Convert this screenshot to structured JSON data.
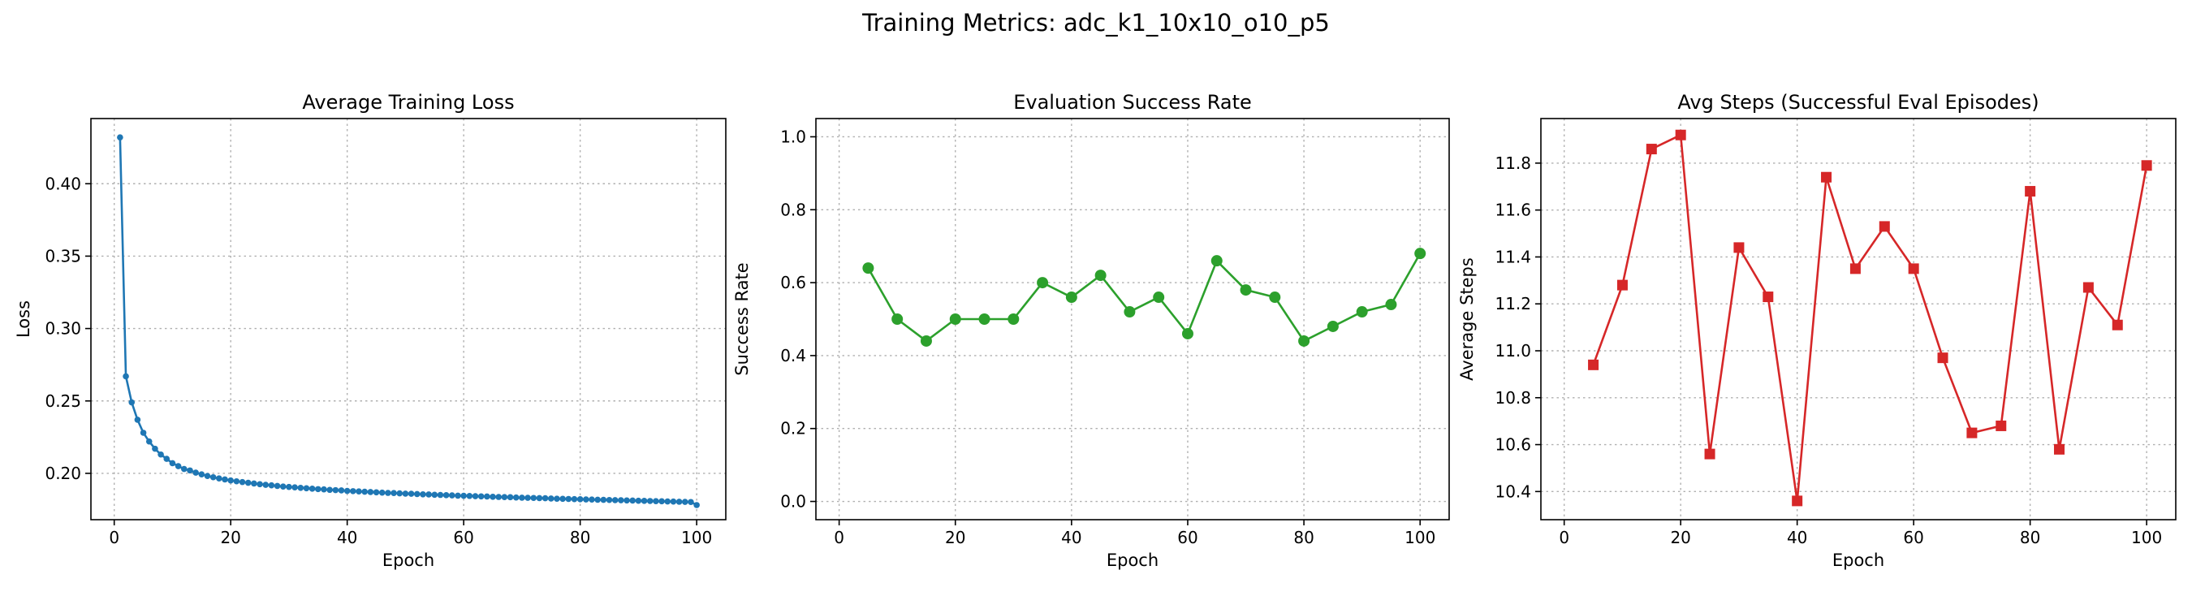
{
  "suptitle": "Training Metrics: adc_k1_10x10_o10_p5",
  "chart_data": [
    {
      "type": "line",
      "title": "Average Training Loss",
      "xlabel": "Epoch",
      "ylabel": "Loss",
      "xlim": [
        -4,
        105
      ],
      "ylim": [
        0.168,
        0.445
      ],
      "xticks": [
        0,
        20,
        40,
        60,
        80,
        100
      ],
      "yticks": [
        0.2,
        0.25,
        0.3,
        0.35,
        0.4
      ],
      "ytick_labels": [
        "0.20",
        "0.25",
        "0.30",
        "0.35",
        "0.40"
      ],
      "grid": true,
      "legend": "none",
      "color": "#1f77b4",
      "marker": "circle-small",
      "series": [
        {
          "x": [
            1,
            2,
            3,
            4,
            5,
            6,
            7,
            8,
            9,
            10,
            11,
            12,
            13,
            14,
            15,
            16,
            17,
            18,
            19,
            20,
            21,
            22,
            23,
            24,
            25,
            26,
            27,
            28,
            29,
            30,
            31,
            32,
            33,
            34,
            35,
            36,
            37,
            38,
            39,
            40,
            41,
            42,
            43,
            44,
            45,
            46,
            47,
            48,
            49,
            50,
            51,
            52,
            53,
            54,
            55,
            56,
            57,
            58,
            59,
            60,
            61,
            62,
            63,
            64,
            65,
            66,
            67,
            68,
            69,
            70,
            71,
            72,
            73,
            74,
            75,
            76,
            77,
            78,
            79,
            80,
            81,
            82,
            83,
            84,
            85,
            86,
            87,
            88,
            89,
            90,
            91,
            92,
            93,
            94,
            95,
            96,
            97,
            98,
            99,
            100
          ],
          "values": [
            0.432,
            0.267,
            0.249,
            0.237,
            0.228,
            0.222,
            0.217,
            0.213,
            0.21,
            0.207,
            0.205,
            0.203,
            0.202,
            0.2005,
            0.1993,
            0.1982,
            0.1973,
            0.1965,
            0.1958,
            0.1951,
            0.1945,
            0.194,
            0.1935,
            0.193,
            0.1925,
            0.1921,
            0.1917,
            0.1913,
            0.1909,
            0.1906,
            0.1903,
            0.19,
            0.1897,
            0.1894,
            0.1891,
            0.1889,
            0.1886,
            0.1884,
            0.1882,
            0.1879,
            0.1877,
            0.1875,
            0.1873,
            0.1871,
            0.1869,
            0.1867,
            0.1865,
            0.1864,
            0.1862,
            0.186,
            0.1859,
            0.1857,
            0.1855,
            0.1854,
            0.1852,
            0.1851,
            0.1849,
            0.1848,
            0.1846,
            0.1845,
            0.1844,
            0.1842,
            0.1841,
            0.184,
            0.1838,
            0.1837,
            0.1836,
            0.1835,
            0.1833,
            0.1832,
            0.1831,
            0.183,
            0.1829,
            0.1828,
            0.1826,
            0.1825,
            0.1824,
            0.1823,
            0.1822,
            0.1821,
            0.182,
            0.1819,
            0.1818,
            0.1817,
            0.1816,
            0.1815,
            0.1814,
            0.1813,
            0.1812,
            0.1811,
            0.181,
            0.1809,
            0.1808,
            0.1807,
            0.1806,
            0.1805,
            0.1804,
            0.1803,
            0.1802,
            0.1781
          ]
        }
      ]
    },
    {
      "type": "line",
      "title": "Evaluation Success Rate",
      "xlabel": "Epoch",
      "ylabel": "Success Rate",
      "xlim": [
        -4,
        105
      ],
      "ylim": [
        -0.05,
        1.05
      ],
      "xticks": [
        0,
        20,
        40,
        60,
        80,
        100
      ],
      "yticks": [
        0.0,
        0.2,
        0.4,
        0.6,
        0.8,
        1.0
      ],
      "ytick_labels": [
        "0.0",
        "0.2",
        "0.4",
        "0.6",
        "0.8",
        "1.0"
      ],
      "grid": true,
      "legend": "none",
      "color": "#2ca02c",
      "marker": "circle",
      "series": [
        {
          "x": [
            5,
            10,
            15,
            20,
            25,
            30,
            35,
            40,
            45,
            50,
            55,
            60,
            65,
            70,
            75,
            80,
            85,
            90,
            95,
            100
          ],
          "values": [
            0.64,
            0.5,
            0.44,
            0.5,
            0.5,
            0.5,
            0.6,
            0.56,
            0.62,
            0.52,
            0.56,
            0.46,
            0.66,
            0.58,
            0.56,
            0.44,
            0.48,
            0.52,
            0.54,
            0.68
          ]
        }
      ]
    },
    {
      "type": "line",
      "title": "Avg Steps (Successful Eval Episodes)",
      "xlabel": "Epoch",
      "ylabel": "Average Steps",
      "xlim": [
        -4,
        105
      ],
      "ylim": [
        10.28,
        11.99
      ],
      "xticks": [
        0,
        20,
        40,
        60,
        80,
        100
      ],
      "yticks": [
        10.4,
        10.6,
        10.8,
        11.0,
        11.2,
        11.4,
        11.6,
        11.8
      ],
      "ytick_labels": [
        "10.4",
        "10.6",
        "10.8",
        "11.0",
        "11.2",
        "11.4",
        "11.6",
        "11.8"
      ],
      "grid": true,
      "legend": "none",
      "color": "#d62728",
      "marker": "square",
      "series": [
        {
          "x": [
            5,
            10,
            15,
            20,
            25,
            30,
            35,
            40,
            45,
            50,
            55,
            60,
            65,
            70,
            75,
            80,
            85,
            90,
            95,
            100
          ],
          "values": [
            10.94,
            11.28,
            11.86,
            11.92,
            10.56,
            11.44,
            11.23,
            10.36,
            11.74,
            11.35,
            11.53,
            11.35,
            10.97,
            10.65,
            10.68,
            11.68,
            10.58,
            11.27,
            11.11,
            11.79
          ]
        }
      ]
    }
  ]
}
